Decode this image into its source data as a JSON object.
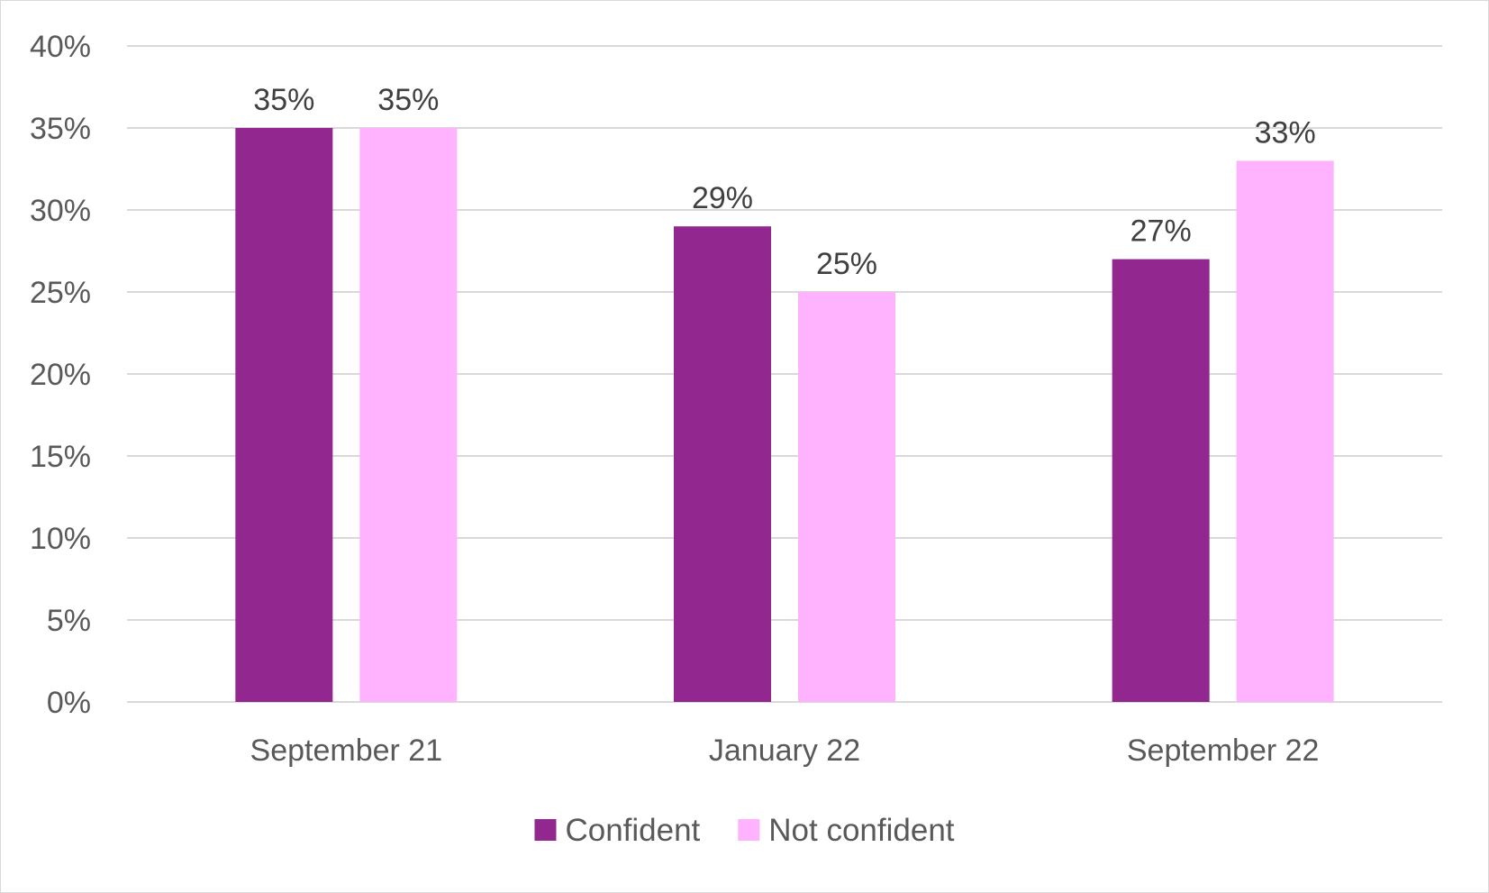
{
  "chart_data": {
    "type": "bar",
    "title": "",
    "xlabel": "",
    "ylabel": "",
    "categories": [
      "September 21",
      "January 22",
      "September 22"
    ],
    "series": [
      {
        "name": "Confident",
        "values": [
          35,
          29,
          27
        ],
        "color": "#92278f"
      },
      {
        "name": "Not confident",
        "values": [
          35,
          25,
          33
        ],
        "color": "#ffb3ff"
      }
    ],
    "value_suffix": "%",
    "ylim": [
      0,
      40
    ],
    "yticks": [
      0,
      5,
      10,
      15,
      20,
      25,
      30,
      35,
      40
    ],
    "grid": true,
    "gridline_color": "#d9d9d9",
    "legend_position": "bottom",
    "data_labels": true
  }
}
